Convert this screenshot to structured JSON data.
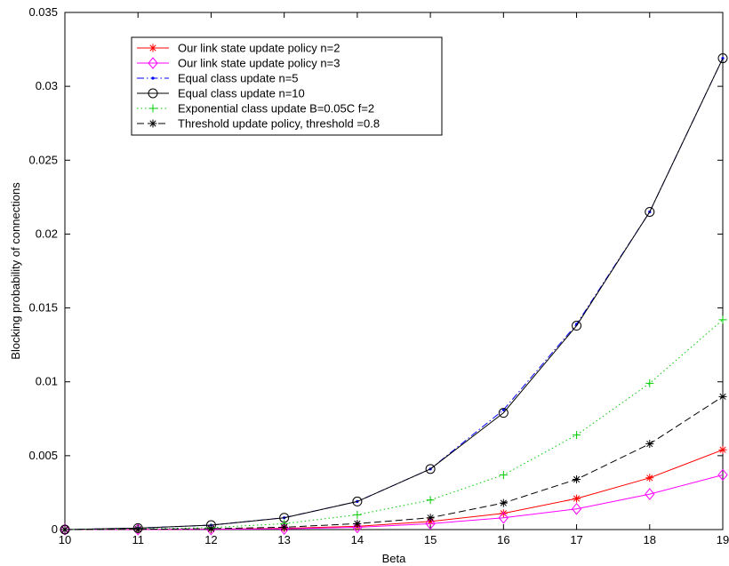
{
  "chart_data": {
    "type": "line",
    "title": "",
    "xlabel": "Beta",
    "ylabel": "Blocking probability of connections",
    "xlim": [
      10,
      19
    ],
    "ylim": [
      0,
      0.035
    ],
    "x_ticks": [
      "10",
      "11",
      "12",
      "13",
      "14",
      "15",
      "16",
      "17",
      "18",
      "19"
    ],
    "y_ticks": [
      "0",
      "0.005",
      "0.01",
      "0.015",
      "0.02",
      "0.025",
      "0.03",
      "0.035"
    ],
    "grid": false,
    "legend_position": "top-left",
    "x": [
      10,
      11,
      12,
      13,
      14,
      15,
      16,
      17,
      18,
      19
    ],
    "series": [
      {
        "name": "Our link state update policy n=2",
        "color": "#ff0000",
        "line": "solid",
        "marker": "asterisk",
        "values": [
          0.0,
          1e-05,
          3e-05,
          8e-05,
          0.00022,
          0.00055,
          0.0011,
          0.0021,
          0.0035,
          0.0054
        ]
      },
      {
        "name": "Our link state update policy n=3",
        "color": "#ff00ff",
        "line": "solid",
        "marker": "diamond",
        "values": [
          0.0,
          1e-05,
          2e-05,
          5e-05,
          0.00015,
          0.0004,
          0.0008,
          0.0014,
          0.0024,
          0.0037
        ]
      },
      {
        "name": "Equal class update n=5",
        "color": "#0000ff",
        "line": "dashdot",
        "marker": "dot",
        "values": [
          0.0,
          0.0001,
          0.0003,
          0.0008,
          0.0019,
          0.0041,
          0.0081,
          0.0139,
          0.0215,
          0.0319
        ]
      },
      {
        "name": "Equal class update n=10",
        "color": "#000000",
        "line": "solid",
        "marker": "circle",
        "values": [
          0.0,
          0.0001,
          0.0003,
          0.0008,
          0.0019,
          0.0041,
          0.0079,
          0.0138,
          0.0215,
          0.0319
        ]
      },
      {
        "name": "Exponential class update B=0.05C f=2",
        "color": "#00cc00",
        "line": "dotted",
        "marker": "plus",
        "values": [
          0.0,
          4e-05,
          0.00013,
          0.0004,
          0.001,
          0.002,
          0.0037,
          0.0064,
          0.0099,
          0.0142
        ]
      },
      {
        "name": "Threshold update policy, threshold =0.8",
        "color": "#000000",
        "line": "dashed",
        "marker": "asterisk",
        "values": [
          0.0,
          2e-05,
          6e-05,
          0.00016,
          0.0004,
          0.0008,
          0.0018,
          0.0034,
          0.0058,
          0.009
        ]
      }
    ]
  }
}
